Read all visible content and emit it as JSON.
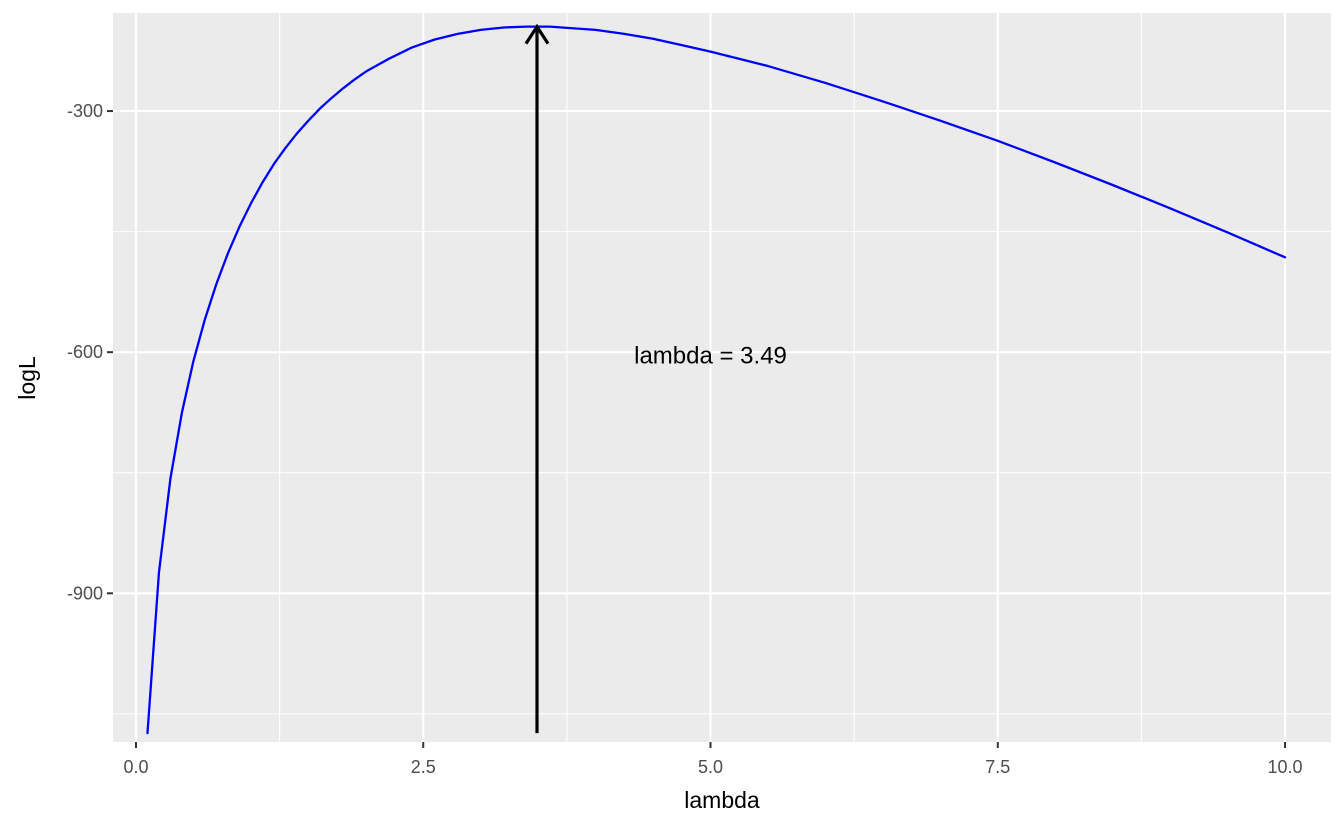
{
  "chart_data": {
    "type": "line",
    "title": "",
    "xlabel": "lambda",
    "ylabel": "logL",
    "xlim": [
      -0.2,
      10.4
    ],
    "ylim": [
      -1085,
      -178
    ],
    "x_ticks": [
      0.0,
      2.5,
      5.0,
      7.5,
      10.0
    ],
    "x_tick_labels": [
      "0.0",
      "2.5",
      "5.0",
      "7.5",
      "10.0"
    ],
    "y_ticks": [
      -900,
      -600,
      -300
    ],
    "y_tick_labels": [
      "-900",
      "-600",
      "-300"
    ],
    "grid": true,
    "series": [
      {
        "color": "#0000ff",
        "x": [
          0.1,
          0.2,
          0.3,
          0.4,
          0.5,
          0.6,
          0.7,
          0.8,
          0.9,
          1.0,
          1.1,
          1.2,
          1.3,
          1.4,
          1.5,
          1.6,
          1.7,
          1.8,
          1.9,
          2.0,
          2.2,
          2.4,
          2.6,
          2.8,
          3.0,
          3.2,
          3.4,
          3.49,
          3.6,
          3.8,
          4.0,
          4.25,
          4.5,
          4.75,
          5.0,
          5.5,
          6.0,
          6.5,
          7.0,
          7.5,
          8.0,
          8.5,
          9.0,
          9.5,
          10.0
        ],
        "y": [
          -1074,
          -874,
          -757,
          -675,
          -611,
          -559,
          -515,
          -477,
          -444,
          -415,
          -389,
          -366,
          -346,
          -328,
          -312,
          -297,
          -284,
          -272,
          -261,
          -251,
          -235,
          -221,
          -211,
          -204,
          -199,
          -196,
          -195,
          -195,
          -195,
          -197,
          -199,
          -204,
          -210,
          -218,
          -226,
          -244,
          -265,
          -288,
          -312,
          -337,
          -364,
          -392,
          -421,
          -451,
          -482
        ]
      }
    ],
    "annotations": [
      {
        "type": "arrow",
        "x": 3.49,
        "y_start": -1074,
        "y_end": -195,
        "color": "#000000"
      },
      {
        "type": "text",
        "text": "lambda = 3.49",
        "x": 5.0,
        "y": -603
      }
    ]
  }
}
